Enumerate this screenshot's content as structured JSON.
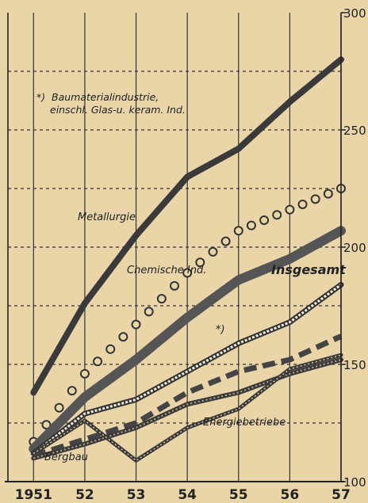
{
  "chart_data": {
    "type": "line",
    "x": [
      "1951",
      "52",
      "53",
      "54",
      "55",
      "56",
      "57"
    ],
    "ylim": [
      100,
      300
    ],
    "yticks": [
      100,
      150,
      200,
      250,
      300
    ],
    "grid": true,
    "footnote_marker": "*)",
    "footnote_line1": "Baumaterialindustrie,",
    "footnote_line2": "einschl. Glas-u. keram. Ind.",
    "series": [
      {
        "name": "Metallurgie",
        "style": "thick-dark",
        "values": [
          138,
          176,
          205,
          230,
          242,
          262,
          280
        ]
      },
      {
        "name": "Chemische Ind.",
        "style": "circles",
        "values": [
          117,
          146,
          167,
          189,
          207,
          216,
          225
        ]
      },
      {
        "name": "Insgesamt",
        "style": "thick-grey",
        "values": [
          114,
          136,
          152,
          170,
          186,
          195,
          207
        ]
      },
      {
        "name": "*)",
        "style": "double-white",
        "values": [
          112,
          129,
          135,
          147,
          159,
          168,
          184
        ]
      },
      {
        "name": "",
        "style": "dashed",
        "values": [
          111,
          118,
          125,
          138,
          147,
          152,
          162
        ]
      },
      {
        "name": "Energiebetriebe",
        "style": "double-dark",
        "values": [
          110,
          116,
          123,
          133,
          138,
          146,
          152
        ]
      },
      {
        "name": "Bergbau",
        "style": "thick-dark-thin",
        "values": [
          112,
          126,
          109,
          123,
          131,
          148,
          154
        ]
      }
    ]
  }
}
